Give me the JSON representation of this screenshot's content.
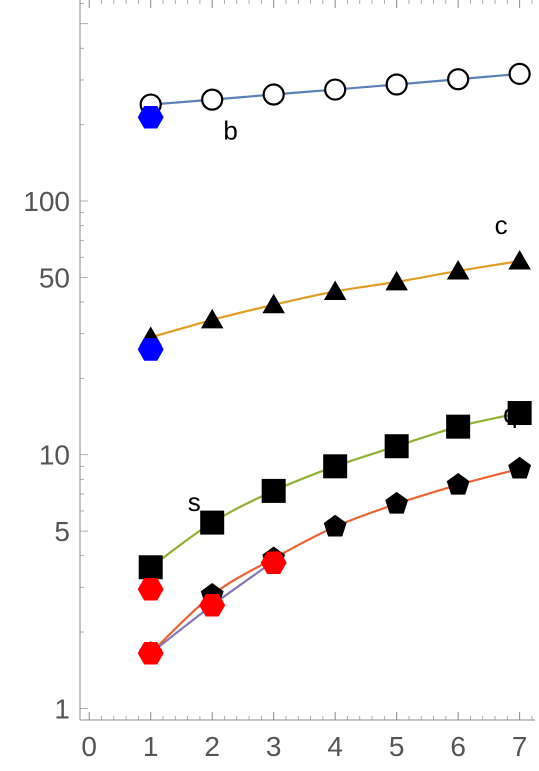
{
  "chart_data": {
    "type": "scatter",
    "title": "",
    "xlabel": "",
    "ylabel": "",
    "x_ticks": [
      0,
      1,
      2,
      3,
      4,
      5,
      6,
      7
    ],
    "y_ticks": [
      1,
      5,
      10,
      50,
      100
    ],
    "y_scale": "log",
    "xlim": [
      -0.15,
      7.25
    ],
    "ylim": [
      0.9,
      620
    ],
    "grid": false,
    "series": [
      {
        "name": "b",
        "line_color": "#5e81b5",
        "marker": "open-circle",
        "x": [
          1,
          2,
          3,
          4,
          5,
          6,
          7
        ],
        "y": [
          240,
          251,
          263,
          275,
          288,
          302,
          317
        ]
      },
      {
        "name": "c",
        "line_color": "#e19c24",
        "marker": "triangle",
        "x": [
          1,
          2,
          3,
          4,
          5,
          6,
          7
        ],
        "y": [
          29,
          34,
          39,
          44,
          48,
          53,
          58
        ]
      },
      {
        "name": "s",
        "label_x": 2,
        "label_y": 6.0,
        "line_color": "#8fb032",
        "marker": "square",
        "x": [
          1,
          2,
          3,
          4,
          5,
          6,
          7
        ],
        "y": [
          3.6,
          5.4,
          7.2,
          9.0,
          10.8,
          12.9,
          14.6
        ]
      },
      {
        "name": "q",
        "label_x": 6.85,
        "label_y": 13.4,
        "line_color": "#eb6235",
        "marker": "pentagon",
        "x": [
          1,
          2,
          3,
          4,
          5,
          6,
          7
        ],
        "y": [
          1.65,
          2.8,
          3.9,
          5.2,
          6.4,
          7.6,
          8.8
        ]
      },
      {
        "name": "",
        "line_color": "#8778b3",
        "marker": "none",
        "x": [
          1,
          2,
          3
        ],
        "y": [
          1.65,
          2.55,
          3.8
        ]
      }
    ],
    "extra_points": [
      {
        "color": "#0000ff",
        "marker": "hexagon",
        "x": 1,
        "y": 214
      },
      {
        "color": "#0000ff",
        "marker": "hexagon",
        "x": 1,
        "y": 26
      },
      {
        "color": "#ff0000",
        "marker": "hexagon",
        "x": 1,
        "y": 1.65
      },
      {
        "color": "#ff0000",
        "marker": "hexagon",
        "x": 1,
        "y": 2.95
      },
      {
        "color": "#ff0000",
        "marker": "hexagon",
        "x": 2,
        "y": 2.55
      },
      {
        "color": "#ff0000",
        "marker": "hexagon",
        "x": 3,
        "y": 3.75
      }
    ]
  }
}
